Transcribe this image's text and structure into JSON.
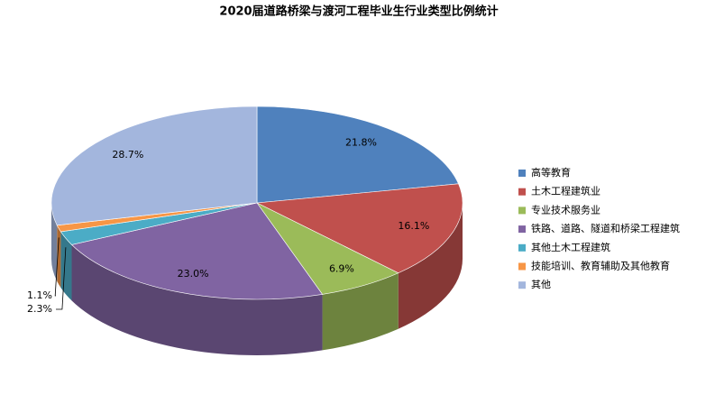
{
  "chart_data": {
    "type": "pie3d",
    "title": "2020届道路桥梁与渡河工程毕业生行业类型比例统计",
    "categories": [
      "高等教育",
      "土木工程建筑业",
      "专业技术服务业",
      "铁路、道路、隧道和桥梁工程建筑",
      "其他土木工程建筑",
      "技能培训、教育辅助及其他教育",
      "其他"
    ],
    "values": [
      21.8,
      16.1,
      6.9,
      23.0,
      2.3,
      1.1,
      28.7
    ],
    "value_labels": [
      "21.8%",
      "16.1%",
      "6.9%",
      "23.0%",
      "2.3%",
      "1.1%",
      "28.7%"
    ],
    "colors": [
      "#4f81bd",
      "#c0504d",
      "#9bbb59",
      "#8064a2",
      "#4bacc6",
      "#f79646",
      "#a3b6dd"
    ],
    "legend": "right"
  }
}
